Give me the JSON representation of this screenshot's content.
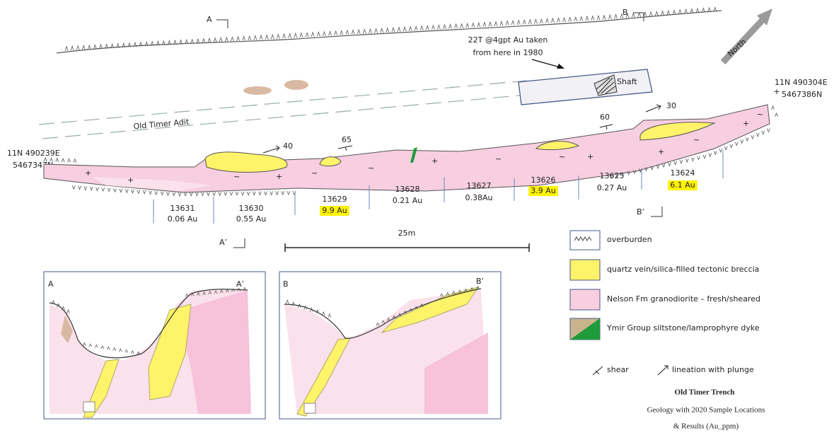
{
  "map": {
    "section_labels": {
      "a": "A",
      "b": "B",
      "a_prime": "A’",
      "b_prime": "B’"
    },
    "north": "North",
    "note": [
      "22T @4gpt Au taken",
      "from here in 1980"
    ],
    "shaft": "Shaft",
    "adit": "Old Timer Adit",
    "coord_west": [
      "11N 490239E",
      "5467347N"
    ],
    "coord_east": [
      "11N 490304E",
      "5467386N"
    ],
    "attitudes": [
      "40",
      "65",
      "60",
      "30"
    ],
    "samples": [
      {
        "id": "13631",
        "result": "0.06 Au"
      },
      {
        "id": "13630",
        "result": "0.55 Au"
      },
      {
        "id": "13629",
        "result": "9.9 Au"
      },
      {
        "id": "13628",
        "result": "0.21 Au"
      },
      {
        "id": "13627",
        "result": "0.38Au"
      },
      {
        "id": "13626",
        "result": "3.9 Au"
      },
      {
        "id": "13625",
        "result": "0.27 Au"
      },
      {
        "id": "13624",
        "result": "6.1 Au"
      }
    ],
    "scale": "25m"
  },
  "insets": [
    {
      "left": "A",
      "right": "A’"
    },
    {
      "left": "B",
      "right": "B’"
    }
  ],
  "legend": {
    "items": [
      "overburden",
      "quartz vein/silica-filled tectonic breccia",
      "Nelson Fm granodiorite – fresh/sheared",
      "Ymir Group siltstone/lamprophyre dyke"
    ],
    "symbols": [
      "shear",
      "lineation with plunge"
    ]
  },
  "title": "Old Timer Trench",
  "subtitle": [
    "Geology with 2020 Sample Locations",
    "& Results (Au_ppm)"
  ]
}
